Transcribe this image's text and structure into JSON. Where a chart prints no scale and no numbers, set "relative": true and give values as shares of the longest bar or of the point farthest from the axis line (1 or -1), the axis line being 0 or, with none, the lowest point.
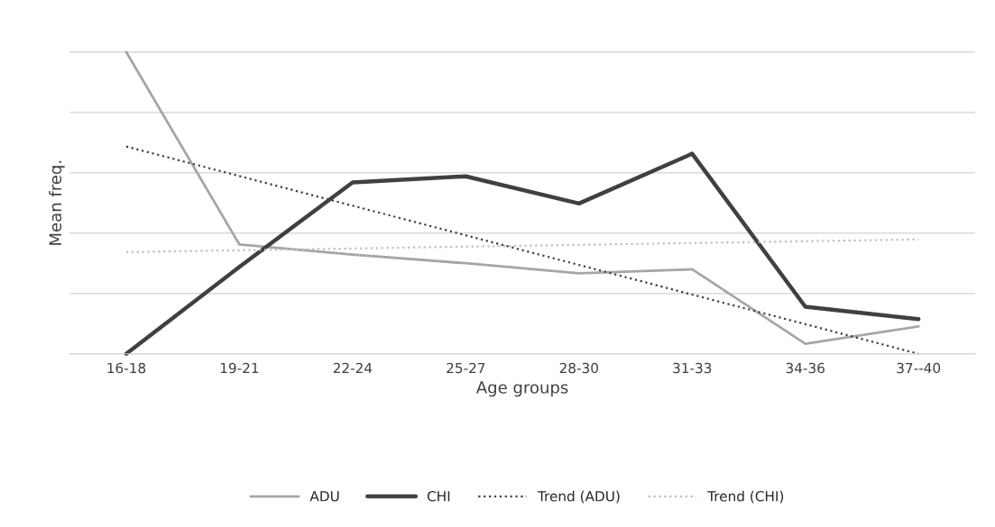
{
  "chart_data": {
    "type": "line",
    "relative": true,
    "xlabel": "Age groups",
    "ylabel": "Mean freq.",
    "categories": [
      "16-18",
      "19-21",
      "22-24",
      "25-27",
      "28-30",
      "31-33",
      "34-36",
      "37--40"
    ],
    "series": [
      {
        "name": "ADU",
        "color": "#a6a6a6",
        "values": [
          1,
          0.362,
          0.329,
          0.3,
          0.267,
          0.28,
          0.033,
          0.091
        ]
      },
      {
        "name": "CHI",
        "color": "#404040",
        "values": [
          0,
          0.288,
          0.568,
          0.588,
          0.498,
          0.663,
          0.156,
          0.115
        ]
      },
      {
        "name": "Trend (ADU)",
        "color": "#404040",
        "line_style": "dotted",
        "x": [
          "16-18",
          "37--40"
        ],
        "values": [
          0.687,
          0
        ]
      },
      {
        "name": "Trend (CHI)",
        "color": "#bfbfbf",
        "line_style": "dotted",
        "x": [
          "16-18",
          "37--40"
        ],
        "values": [
          0.337,
          0.379
        ]
      }
    ],
    "grid": "y",
    "legend": "bottom",
    "tick_labels": "x"
  }
}
